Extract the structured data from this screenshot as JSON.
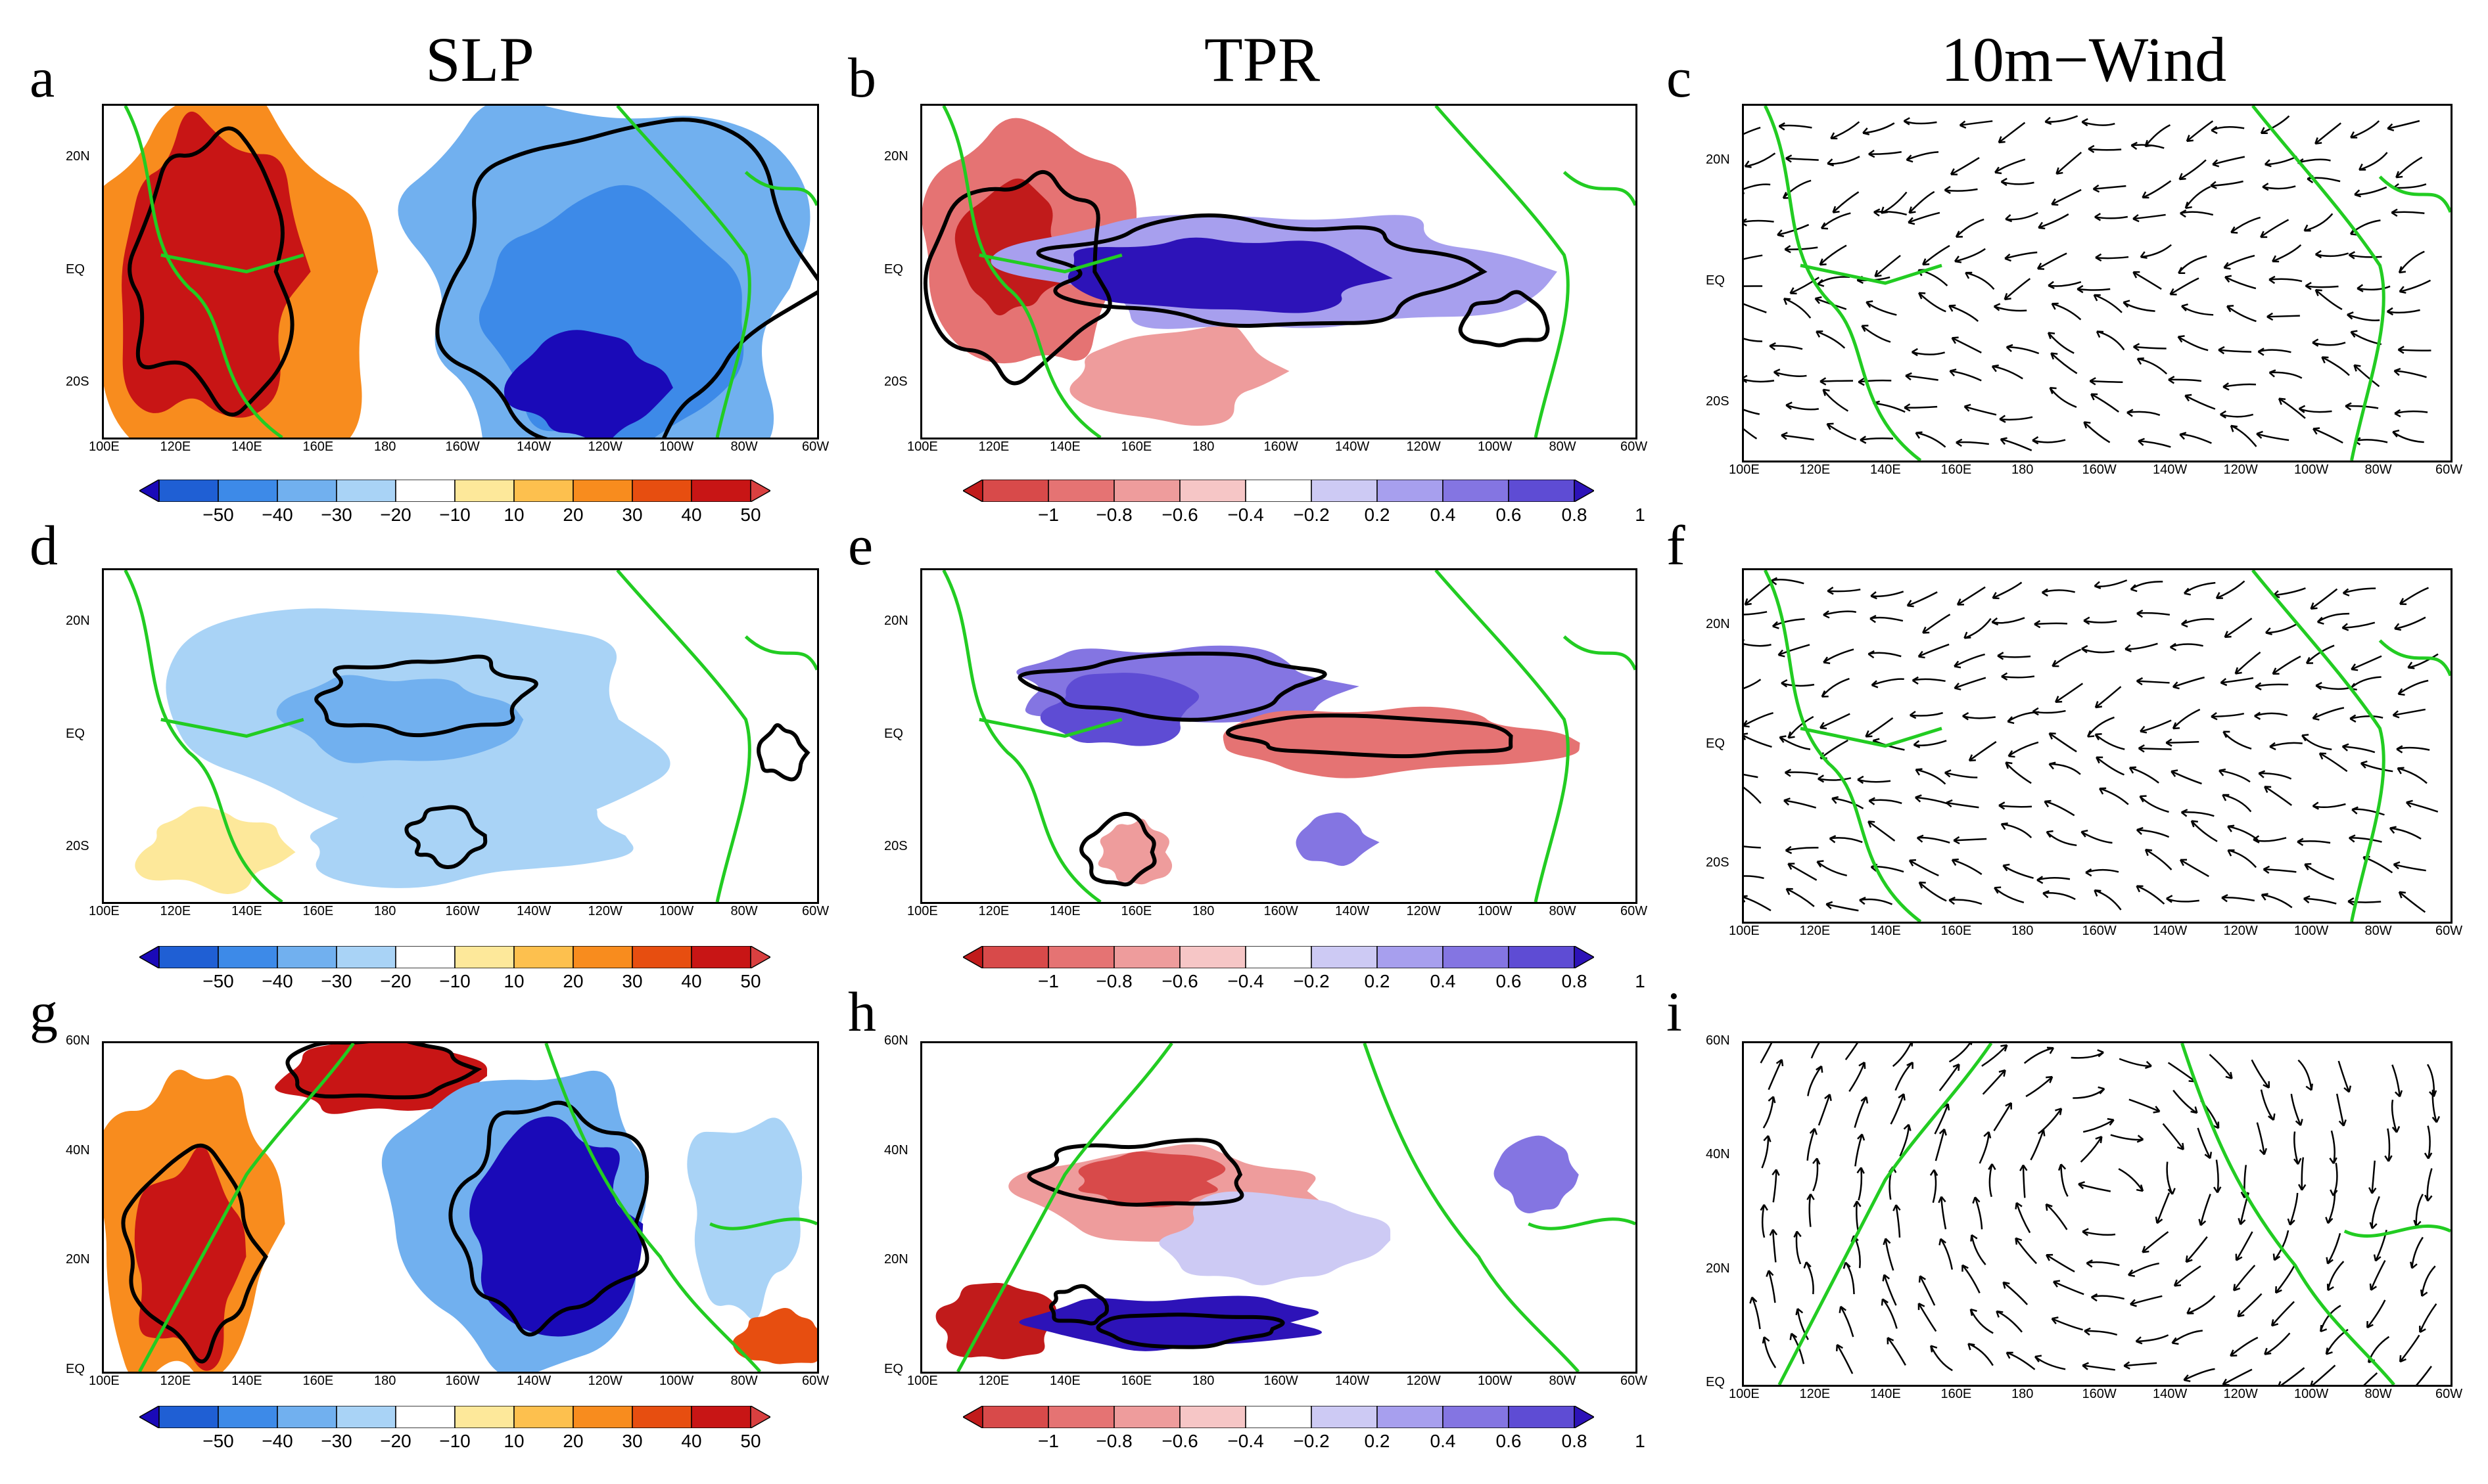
{
  "titles": {
    "slp": "SLP",
    "tpr": "TPR",
    "wind": "10m−Wind"
  },
  "panel_letters": [
    "a",
    "b",
    "c",
    "d",
    "e",
    "f",
    "g",
    "h",
    "i"
  ],
  "x_ticks": [
    "100E",
    "120E",
    "140E",
    "160E",
    "180",
    "160W",
    "140W",
    "120W",
    "100W",
    "80W",
    "60W"
  ],
  "y_ticks_tropics": [
    "20N",
    "EQ",
    "20S"
  ],
  "y_ticks_north": [
    "60N",
    "40N",
    "20N",
    "EQ"
  ],
  "slp_colorbar": {
    "labels": [
      "−50",
      "−40",
      "−30",
      "−20",
      "−10",
      "10",
      "20",
      "30",
      "40",
      "50"
    ],
    "colors": [
      "#1a0ab8",
      "#1f5fd4",
      "#3d8ae8",
      "#71b0ef",
      "#a9d3f6",
      "#ffffff",
      "#fde89a",
      "#fdc04e",
      "#f88c1e",
      "#e74e10",
      "#c81515",
      "#d94040"
    ]
  },
  "tpr_colorbar": {
    "labels": [
      "−1",
      "−0.8",
      "−0.6",
      "−0.4",
      "−0.2",
      "0.2",
      "0.4",
      "0.6",
      "0.8",
      "1"
    ],
    "colors": [
      "#c11b1b",
      "#d84a4a",
      "#e57373",
      "#ee9c9c",
      "#f6c6c6",
      "#ffffff",
      "#cdcaf4",
      "#a79fee",
      "#8475e2",
      "#5e4cd4",
      "#2d13b8"
    ]
  },
  "colors": {
    "coast": "#22cc22",
    "contour": "#000000"
  }
}
